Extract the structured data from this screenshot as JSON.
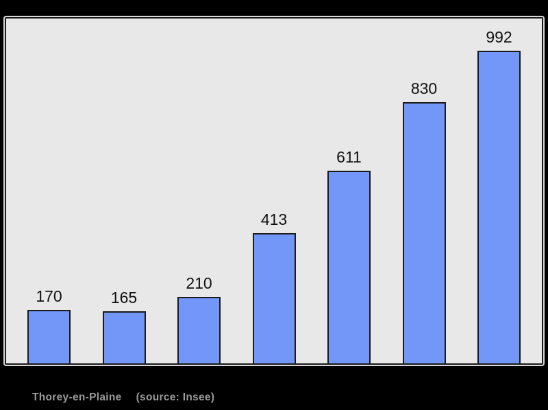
{
  "page": {
    "background_color": "#000000"
  },
  "chart_data": {
    "type": "bar",
    "values": [
      170,
      165,
      210,
      413,
      611,
      830,
      992
    ],
    "title": "",
    "xlabel": "",
    "ylabel": "",
    "ylim": [
      0,
      1090
    ],
    "grid": false,
    "legend": false,
    "x_tick_labels_visible": false,
    "value_labels_visible": true,
    "style": {
      "plot_background": "#e8e8e8",
      "plot_border_color": "#1a1a1a",
      "plot_outer_outline_color": "#ffffff",
      "bar_fill": "#7397f8",
      "bar_border": "#1a1a1a",
      "value_label_color": "#111111"
    }
  },
  "caption": {
    "place_name": "Thorey-en-Plaine",
    "source_note": "(source: Insee)",
    "text_color": "#9a9a9a"
  }
}
